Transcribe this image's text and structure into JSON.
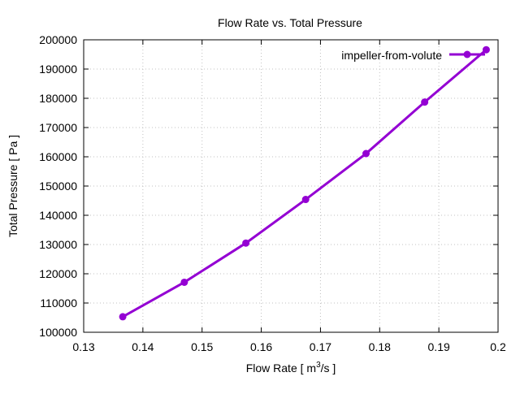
{
  "chart_data": {
    "type": "line",
    "title": "Flow Rate vs. Total Pressure",
    "xlabel": "Flow Rate [ m3/s ]",
    "xlabel_parts": {
      "pre": "Flow Rate [ m",
      "sup": "3",
      "post": "/s ]"
    },
    "ylabel": "Total Pressure [ Pa ]",
    "xlim": [
      0.13,
      0.2
    ],
    "ylim": [
      100000,
      200000
    ],
    "xticks": [
      "0.13",
      "0.14",
      "0.15",
      "0.16",
      "0.17",
      "0.18",
      "0.19",
      "0.2"
    ],
    "yticks": [
      "100000",
      "110000",
      "120000",
      "130000",
      "140000",
      "150000",
      "160000",
      "170000",
      "180000",
      "190000",
      "200000"
    ],
    "grid": true,
    "legend_position": "top-right",
    "series": [
      {
        "name": "impeller-from-volute",
        "color": "#9400d3",
        "x": [
          0.1366,
          0.147,
          0.1574,
          0.1675,
          0.1777,
          0.1876,
          0.198
        ],
        "y": [
          105300,
          117100,
          130500,
          145400,
          161100,
          178700,
          196600
        ]
      }
    ]
  }
}
